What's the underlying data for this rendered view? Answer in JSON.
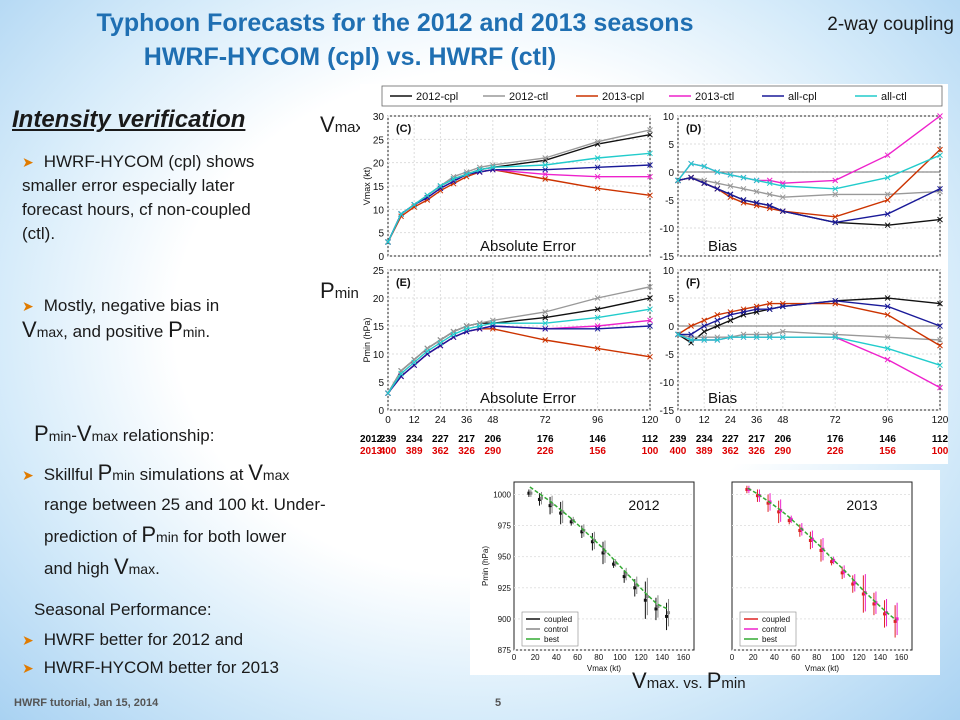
{
  "header": {
    "title_line1": "Typhoon Forecasts for the 2012 and 2013 seasons",
    "title_line2": "HWRF-HYCOM (cpl)  vs. HWRF (ctl)",
    "coupling": "2-way coupling"
  },
  "left": {
    "intensity_heading": "Intensity verification",
    "b1": "HWRF-HYCOM (cpl) shows smaller error especially later forecast hours, cf non-coupled (ctl).",
    "b2_pre": "Mostly, negative bias in",
    "b2_v": "V",
    "b2_vsub": "max",
    "b2_mid": ", and positive",
    "b2_p": "P",
    "b2_psub": "min",
    "b2_end": ".",
    "rel_p": "P",
    "rel_psub": "min",
    "rel_dash": "-",
    "rel_v": "V",
    "rel_vsub": "max",
    "rel_rest": " relationship:",
    "b3_a": "Skillful ",
    "b3_p": "P",
    "b3_psub": "min",
    "b3_b": " simulations at ",
    "b3_v": "V",
    "b3_vsub": "max",
    "b3_c": "range between 25 and 100 kt. Under-",
    "b3_d": "prediction of ",
    "b3_p2": "P",
    "b3_p2sub": "min",
    "b3_e": " for both lower",
    "b3_f": "and high ",
    "b3_v2": "V",
    "b3_v2sub": "max",
    "b3_g": ".",
    "seasonal": "Seasonal Performance:",
    "b4": "HWRF better for 2012 and",
    "b5": "HWRF-HYCOM better for 2013"
  },
  "labels": {
    "vmax_V": "V",
    "vmax_sub": "max",
    "pmin_P": "P",
    "pmin_sub": "min",
    "abs_err1": "Absolute Error",
    "bias1": "Bias",
    "abs_err2": "Absolute Error",
    "bias2": "Bias",
    "vs_V": "V",
    "vs_vsub": "max",
    "vs_mid": ". vs. ",
    "vs_P": "P",
    "vs_psub": "min"
  },
  "footer": {
    "text": "HWRF tutorial, Jan 15, 2014",
    "page": "5"
  },
  "chart_data": [
    {
      "type": "line",
      "panel": "(C)",
      "ylabel": "Vmax (kt)",
      "x": [
        0,
        6,
        12,
        18,
        24,
        30,
        36,
        42,
        48,
        72,
        96,
        120
      ],
      "ylim": [
        0,
        30
      ],
      "series": [
        {
          "name": "2012-cpl",
          "color": "#111111",
          "values": [
            3,
            9,
            11,
            13,
            15,
            16.5,
            17.5,
            18.5,
            19,
            20.5,
            24,
            26
          ]
        },
        {
          "name": "2012-ctl",
          "color": "#999999",
          "values": [
            3,
            9,
            11,
            13,
            15,
            17,
            18,
            19,
            19.5,
            21,
            24.5,
            27
          ]
        },
        {
          "name": "2013-cpl",
          "color": "#cc3300",
          "values": [
            3,
            8.5,
            10.5,
            12,
            14,
            15.5,
            17,
            18,
            18.5,
            16.5,
            14.5,
            13
          ]
        },
        {
          "name": "2013-ctl",
          "color": "#ee22cc",
          "values": [
            3,
            9,
            11,
            12.5,
            14.5,
            16,
            17.5,
            18,
            18.5,
            17.5,
            17,
            17
          ]
        },
        {
          "name": "all-cpl",
          "color": "#1a1a99",
          "values": [
            3,
            9,
            11,
            12.5,
            14.5,
            16,
            17.5,
            18,
            18.5,
            18.5,
            19,
            19.5
          ]
        },
        {
          "name": "all-ctl",
          "color": "#22cccc",
          "values": [
            3,
            9,
            11,
            13,
            15,
            16.5,
            17.5,
            18.5,
            19,
            19.5,
            21,
            22
          ]
        }
      ]
    },
    {
      "type": "line",
      "panel": "(D)",
      "x": [
        0,
        6,
        12,
        18,
        24,
        30,
        36,
        42,
        48,
        72,
        96,
        120
      ],
      "ylim": [
        -15,
        10
      ],
      "series": [
        {
          "name": "2012-cpl",
          "color": "#111111",
          "values": [
            -1.5,
            -1,
            -2,
            -3,
            -4,
            -5,
            -5.5,
            -6,
            -7,
            -9,
            -9.5,
            -8.5
          ]
        },
        {
          "name": "2012-ctl",
          "color": "#999999",
          "values": [
            -1.5,
            -1,
            -1.5,
            -2,
            -2.5,
            -3,
            -3.5,
            -4,
            -4.5,
            -4,
            -4,
            -3.5
          ]
        },
        {
          "name": "2013-cpl",
          "color": "#cc3300",
          "values": [
            -1.5,
            -1,
            -2,
            -3,
            -4.5,
            -5.5,
            -6,
            -6.5,
            -7,
            -8,
            -5,
            4
          ]
        },
        {
          "name": "2013-ctl",
          "color": "#ee22cc",
          "values": [
            -1.5,
            1.5,
            1,
            0,
            -0.5,
            -1,
            -1.5,
            -1.5,
            -2,
            -1.5,
            3,
            10
          ]
        },
        {
          "name": "all-cpl",
          "color": "#1a1a99",
          "values": [
            -1.5,
            -1,
            -2,
            -3,
            -4,
            -5,
            -5.5,
            -6,
            -7,
            -9,
            -7.5,
            -3
          ]
        },
        {
          "name": "all-ctl",
          "color": "#22cccc",
          "values": [
            -1.5,
            1.5,
            1,
            0,
            -0.5,
            -1,
            -1.5,
            -2,
            -2.5,
            -3,
            -1,
            3
          ]
        }
      ]
    },
    {
      "type": "line",
      "panel": "(E)",
      "ylabel": "Pmin (hPa)",
      "x": [
        0,
        6,
        12,
        18,
        24,
        30,
        36,
        42,
        48,
        72,
        96,
        120
      ],
      "ylim": [
        0,
        25
      ],
      "series": [
        {
          "name": "2012-cpl",
          "color": "#111111",
          "values": [
            3,
            7,
            9,
            11,
            12.5,
            14,
            15,
            15.5,
            15.5,
            16.5,
            18,
            20
          ]
        },
        {
          "name": "2012-ctl",
          "color": "#999999",
          "values": [
            3,
            7,
            9,
            11,
            12.5,
            14,
            15,
            15.5,
            16,
            17.5,
            20,
            22
          ]
        },
        {
          "name": "2013-cpl",
          "color": "#cc3300",
          "values": [
            3,
            6,
            8,
            10,
            11.5,
            13,
            14,
            14.5,
            14.5,
            12.5,
            11,
            9.5
          ]
        },
        {
          "name": "2013-ctl",
          "color": "#ee22cc",
          "values": [
            3,
            6,
            8,
            10,
            11.5,
            13,
            14,
            14.5,
            15,
            14.5,
            15,
            16
          ]
        },
        {
          "name": "all-cpl",
          "color": "#1a1a99",
          "values": [
            3,
            6,
            8,
            10,
            11.5,
            13,
            14,
            14.5,
            15,
            14.5,
            14.5,
            15
          ]
        },
        {
          "name": "all-ctl",
          "color": "#22cccc",
          "values": [
            3,
            6.5,
            8.5,
            10.5,
            12,
            13.5,
            14.5,
            15,
            15.5,
            15.5,
            16.5,
            18
          ]
        }
      ]
    },
    {
      "type": "line",
      "panel": "(F)",
      "x": [
        0,
        6,
        12,
        18,
        24,
        30,
        36,
        42,
        48,
        72,
        96,
        120
      ],
      "ylim": [
        -15,
        10
      ],
      "series": [
        {
          "name": "2012-cpl",
          "color": "#111111",
          "values": [
            -1.5,
            -3,
            -1,
            0,
            1,
            2,
            2.5,
            3,
            3.5,
            4.5,
            5,
            4
          ]
        },
        {
          "name": "2012-ctl",
          "color": "#999999",
          "values": [
            -1.5,
            -2,
            -2,
            -2,
            -2,
            -1.5,
            -1.5,
            -1.5,
            -1,
            -1.5,
            -2,
            -2.5
          ]
        },
        {
          "name": "2013-cpl",
          "color": "#cc3300",
          "values": [
            -1.5,
            0,
            1,
            2,
            2.5,
            3,
            3.5,
            4,
            4,
            4,
            2,
            -3.5
          ]
        },
        {
          "name": "2013-ctl",
          "color": "#ee22cc",
          "values": [
            -1.5,
            -2.5,
            -2.5,
            -2.5,
            -2,
            -2,
            -2,
            -2,
            -2,
            -2,
            -6,
            -11
          ]
        },
        {
          "name": "all-cpl",
          "color": "#1a1a99",
          "values": [
            -1.5,
            -1.5,
            0,
            1,
            2,
            2.5,
            3,
            3,
            3.5,
            4.5,
            3.5,
            0
          ]
        },
        {
          "name": "all-ctl",
          "color": "#22cccc",
          "values": [
            -1.5,
            -2.5,
            -2.5,
            -2.5,
            -2,
            -2,
            -2,
            -2,
            -2,
            -2,
            -4,
            -7
          ]
        }
      ]
    },
    {
      "type": "table",
      "rows": [
        {
          "label": "2012:",
          "color": "#000000",
          "values_left": [
            "239",
            "234",
            "227",
            "217",
            "206",
            "176",
            "146",
            "112"
          ],
          "values_right": [
            "239",
            "234",
            "227",
            "217",
            "206",
            "176",
            "146",
            "112"
          ]
        },
        {
          "label": "2013:",
          "color": "#dd0000",
          "values_left": [
            "400",
            "389",
            "362",
            "326",
            "290",
            "226",
            "156",
            "100"
          ],
          "values_right": [
            "400",
            "389",
            "362",
            "326",
            "290",
            "226",
            "156",
            "100"
          ]
        }
      ]
    },
    {
      "type": "scatter",
      "title": "2012",
      "xlabel": "Vmax (kt)",
      "ylabel": "Pmin (hPa)",
      "xlim": [
        0,
        170
      ],
      "ylim": [
        875,
        1010
      ],
      "legend": [
        "coupled",
        "control",
        "best"
      ],
      "x": [
        15,
        25,
        35,
        45,
        55,
        65,
        75,
        85,
        95,
        105,
        115,
        125,
        135,
        145
      ],
      "series": [
        {
          "name": "coupled",
          "color": "#111111",
          "values": [
            1001,
            996,
            991,
            985,
            978,
            970,
            962,
            953,
            944,
            934,
            925,
            915,
            908,
            902
          ]
        },
        {
          "name": "control",
          "color": "#888888",
          "values": [
            1001,
            997,
            992,
            986,
            979,
            971,
            963,
            954,
            945,
            936,
            927,
            918,
            910,
            905
          ]
        },
        {
          "name": "best",
          "color": "#33aa33",
          "values": [
            1006,
            1000,
            994,
            987,
            980,
            972,
            964,
            956,
            947,
            938,
            929,
            920,
            912,
            908
          ]
        }
      ]
    },
    {
      "type": "scatter",
      "title": "2013",
      "xlabel": "Vmax (kt)",
      "ylabel": "Pmin (hPa)",
      "xlim": [
        0,
        170
      ],
      "ylim": [
        875,
        1010
      ],
      "legend": [
        "coupled",
        "control",
        "best"
      ],
      "x": [
        15,
        25,
        35,
        45,
        55,
        65,
        75,
        85,
        95,
        105,
        115,
        125,
        135,
        145,
        155
      ],
      "series": [
        {
          "name": "coupled",
          "color": "#dd2222",
          "values": [
            1004,
            999,
            993,
            986,
            979,
            971,
            963,
            955,
            946,
            937,
            928,
            920,
            912,
            904,
            898
          ]
        },
        {
          "name": "control",
          "color": "#ee22cc",
          "values": [
            1004,
            999,
            994,
            987,
            980,
            972,
            964,
            956,
            947,
            938,
            929,
            921,
            913,
            905,
            900
          ]
        },
        {
          "name": "best",
          "color": "#33aa33",
          "values": [
            1005,
            1000,
            994,
            988,
            981,
            973,
            965,
            957,
            948,
            940,
            931,
            922,
            914,
            906,
            899
          ]
        }
      ]
    }
  ]
}
